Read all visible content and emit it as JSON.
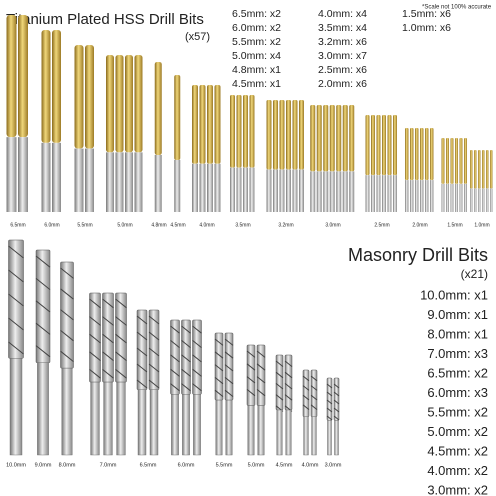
{
  "titanium": {
    "title": "Titanium Plated HSS Drill Bits",
    "count": "(x57)",
    "note": "*Scale not 100% accurate",
    "list": [
      "6.5mm: x2",
      "6.0mm: x2",
      "5.5mm: x2",
      "5.0mm: x4",
      "4.8mm: x1",
      "4.5mm: x1",
      "4.0mm: x4",
      "3.5mm: x4",
      "3.2mm: x6",
      "3.0mm: x7",
      "2.5mm: x6",
      "2.0mm: x6",
      "1.5mm: x6",
      "1.0mm: x6"
    ],
    "bit_labels": [
      "6.5mm",
      "6.0mm",
      "5.5mm",
      "5.0mm",
      "4.8mm",
      "4.5mm",
      "4.0mm",
      "3.5mm",
      "3.2mm",
      "3.0mm",
      "2.5mm",
      "2.0mm",
      "1.5mm",
      "1.0mm"
    ]
  },
  "masonry": {
    "title": "Masonry Drill Bits",
    "count": "(x21)",
    "list": [
      "10.0mm: x1",
      "9.0mm: x1",
      "8.0mm: x1",
      "7.0mm: x3",
      "6.5mm: x2",
      "6.0mm: x3",
      "5.5mm: x2",
      "5.0mm: x2",
      "4.5mm: x2",
      "4.0mm: x2",
      "3.0mm: x2"
    ],
    "bit_labels": [
      "10.0mm",
      "9.0mm",
      "8.0mm",
      "7.0mm",
      "6.5mm",
      "6.0mm",
      "5.5mm",
      "5.0mm",
      "4.5mm",
      "4.0mm",
      "3.0mm"
    ]
  }
}
